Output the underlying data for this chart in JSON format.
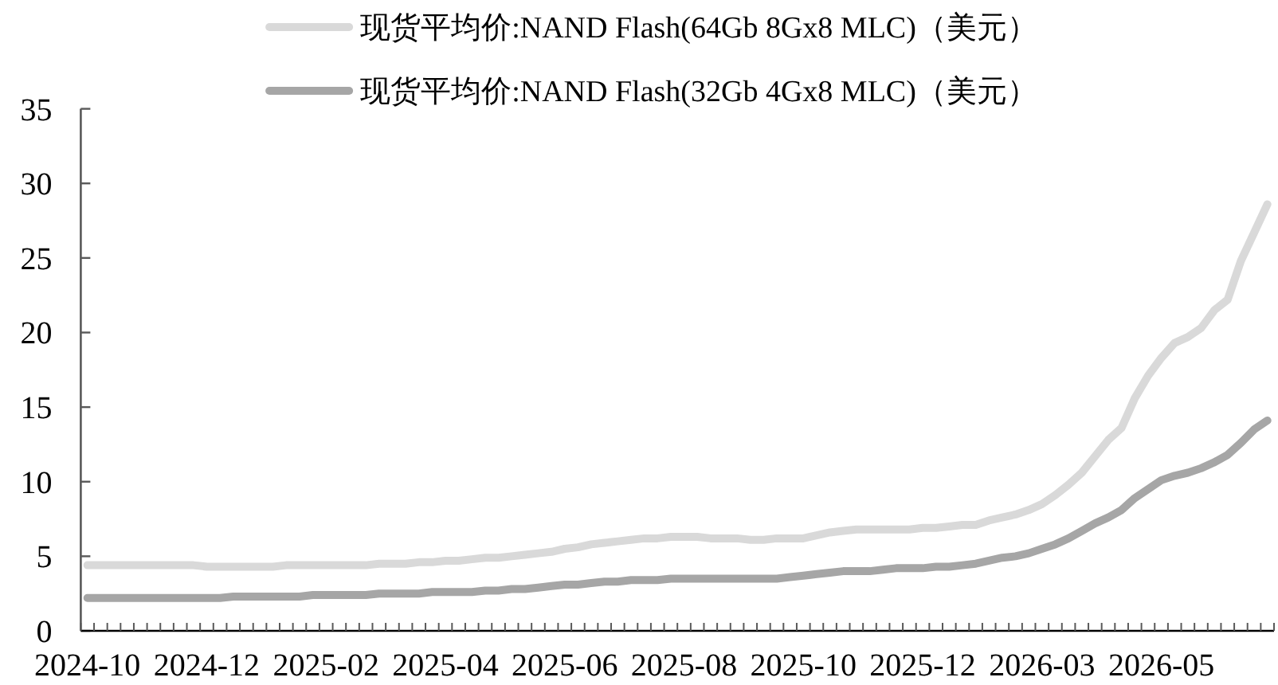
{
  "chart_data": {
    "type": "line",
    "categories": [
      "2024-10",
      null,
      null,
      null,
      null,
      null,
      null,
      null,
      null,
      "2024-12",
      null,
      null,
      null,
      null,
      null,
      null,
      null,
      null,
      "2025-02",
      null,
      null,
      null,
      null,
      null,
      null,
      null,
      null,
      "2025-04",
      null,
      null,
      null,
      null,
      null,
      null,
      null,
      null,
      "2025-06",
      null,
      null,
      null,
      null,
      null,
      null,
      null,
      null,
      "2025-08",
      null,
      null,
      null,
      null,
      null,
      null,
      null,
      null,
      "2025-10",
      null,
      null,
      null,
      null,
      null,
      null,
      null,
      null,
      "2025-12",
      null,
      null,
      null,
      null,
      null,
      null,
      null,
      null,
      "2026-03",
      null,
      null,
      null,
      null,
      null,
      null,
      null,
      null,
      "2026-05",
      null,
      null,
      null,
      null,
      null,
      null,
      null,
      null
    ],
    "series": [
      {
        "name": "现货平均价:NAND Flash(64Gb 8Gx8 MLC)（美元）",
        "color": "#d9d9d9",
        "values": [
          4.4,
          4.4,
          4.4,
          4.4,
          4.4,
          4.4,
          4.4,
          4.4,
          4.4,
          4.3,
          4.3,
          4.3,
          4.3,
          4.3,
          4.3,
          4.4,
          4.4,
          4.4,
          4.4,
          4.4,
          4.4,
          4.4,
          4.5,
          4.5,
          4.5,
          4.6,
          4.6,
          4.7,
          4.7,
          4.8,
          4.9,
          4.9,
          5.0,
          5.1,
          5.2,
          5.3,
          5.5,
          5.6,
          5.8,
          5.9,
          6.0,
          6.1,
          6.2,
          6.2,
          6.3,
          6.3,
          6.3,
          6.2,
          6.2,
          6.2,
          6.1,
          6.1,
          6.2,
          6.2,
          6.2,
          6.4,
          6.6,
          6.7,
          6.8,
          6.8,
          6.8,
          6.8,
          6.8,
          6.9,
          6.9,
          7.0,
          7.1,
          7.1,
          7.4,
          7.6,
          7.8,
          8.1,
          8.5,
          9.1,
          9.8,
          10.6,
          11.7,
          12.8,
          13.6,
          15.6,
          17.1,
          18.3,
          19.3,
          19.7,
          20.3,
          21.5,
          22.2,
          24.8,
          26.7,
          28.6
        ]
      },
      {
        "name": "现货平均价:NAND Flash(32Gb 4Gx8 MLC)（美元）",
        "color": "#a6a6a6",
        "values": [
          2.2,
          2.2,
          2.2,
          2.2,
          2.2,
          2.2,
          2.2,
          2.2,
          2.2,
          2.2,
          2.2,
          2.3,
          2.3,
          2.3,
          2.3,
          2.3,
          2.3,
          2.4,
          2.4,
          2.4,
          2.4,
          2.4,
          2.5,
          2.5,
          2.5,
          2.5,
          2.6,
          2.6,
          2.6,
          2.6,
          2.7,
          2.7,
          2.8,
          2.8,
          2.9,
          3.0,
          3.1,
          3.1,
          3.2,
          3.3,
          3.3,
          3.4,
          3.4,
          3.4,
          3.5,
          3.5,
          3.5,
          3.5,
          3.5,
          3.5,
          3.5,
          3.5,
          3.5,
          3.6,
          3.7,
          3.8,
          3.9,
          4.0,
          4.0,
          4.0,
          4.1,
          4.2,
          4.2,
          4.2,
          4.3,
          4.3,
          4.4,
          4.5,
          4.7,
          4.9,
          5.0,
          5.2,
          5.5,
          5.8,
          6.2,
          6.7,
          7.2,
          7.6,
          8.1,
          8.9,
          9.5,
          10.1,
          10.4,
          10.6,
          10.9,
          11.3,
          11.8,
          12.6,
          13.5,
          14.1
        ]
      }
    ],
    "ylim": [
      0,
      35
    ],
    "yticks": [
      0,
      5,
      10,
      15,
      20,
      25,
      30,
      35
    ],
    "legend": "top"
  }
}
